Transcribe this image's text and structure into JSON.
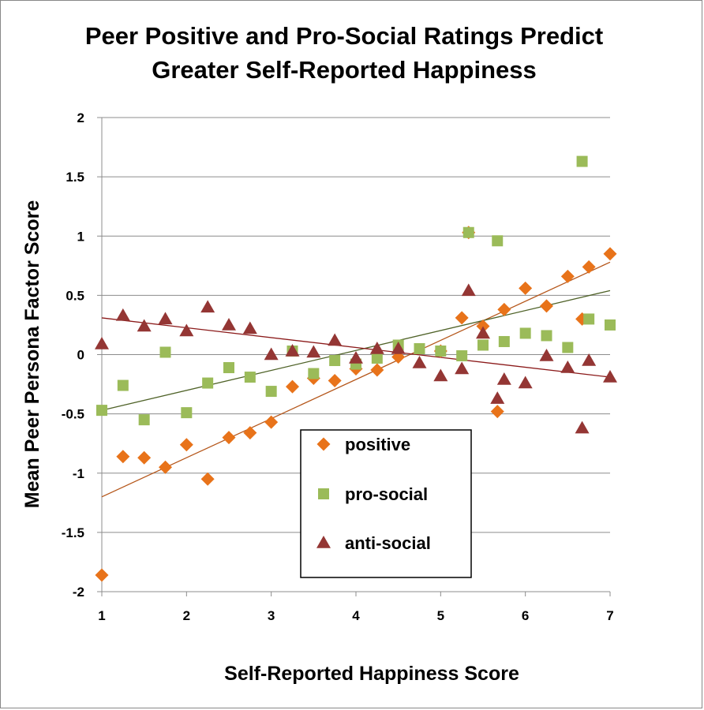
{
  "chart_data": {
    "type": "scatter",
    "title_lines": [
      "Peer Positive and Pro-Social Ratings Predict",
      "Greater Self-Reported Happiness"
    ],
    "xlabel": "Self-Reported Happiness Score",
    "ylabel": "Mean Peer Persona Factor Score",
    "xlim": [
      1,
      7
    ],
    "ylim": [
      -2,
      2
    ],
    "x_ticks": [
      "1",
      "2",
      "3",
      "4",
      "5",
      "6",
      "7"
    ],
    "y_ticks": [
      "2",
      "1.5",
      "1",
      "0.5",
      "0",
      "-0.5",
      "-1",
      "-1.5",
      "-2"
    ],
    "grid": "horizontal",
    "legend_position": "bottom-center",
    "series": [
      {
        "name": "positive",
        "marker": "diamond",
        "color": "#E8731A",
        "trend_color": "#B5561A",
        "trend_line": [
          [
            1,
            -1.2
          ],
          [
            7,
            0.78
          ]
        ],
        "points": [
          [
            1,
            -1.86
          ],
          [
            1.25,
            -0.86
          ],
          [
            1.5,
            -0.87
          ],
          [
            1.75,
            -0.95
          ],
          [
            2,
            -0.76
          ],
          [
            2.25,
            -1.05
          ],
          [
            2.5,
            -0.7
          ],
          [
            2.75,
            -0.66
          ],
          [
            3,
            -0.57
          ],
          [
            3.25,
            -0.27
          ],
          [
            3.5,
            -0.2
          ],
          [
            3.75,
            -0.22
          ],
          [
            4,
            -0.12
          ],
          [
            4.25,
            -0.13
          ],
          [
            4.5,
            -0.02
          ],
          [
            5,
            0.03
          ],
          [
            5.25,
            0.31
          ],
          [
            5.33,
            1.03
          ],
          [
            5.5,
            0.24
          ],
          [
            5.67,
            -0.48
          ],
          [
            5.75,
            0.38
          ],
          [
            6,
            0.56
          ],
          [
            6.25,
            0.41
          ],
          [
            6.5,
            0.66
          ],
          [
            6.67,
            0.3
          ],
          [
            6.75,
            0.74
          ],
          [
            7,
            0.85
          ]
        ]
      },
      {
        "name": "pro-social",
        "marker": "square",
        "color": "#9BBB59",
        "trend_color": "#4F6228",
        "trend_line": [
          [
            1,
            -0.47
          ],
          [
            7,
            0.54
          ]
        ],
        "points": [
          [
            1,
            -0.47
          ],
          [
            1.25,
            -0.26
          ],
          [
            1.5,
            -0.55
          ],
          [
            1.75,
            0.02
          ],
          [
            2,
            -0.49
          ],
          [
            2.25,
            -0.24
          ],
          [
            2.5,
            -0.11
          ],
          [
            2.75,
            -0.19
          ],
          [
            3,
            -0.31
          ],
          [
            3.25,
            0.03
          ],
          [
            3.5,
            -0.16
          ],
          [
            3.75,
            -0.05
          ],
          [
            4,
            -0.08
          ],
          [
            4.25,
            -0.03
          ],
          [
            4.5,
            0.08
          ],
          [
            4.75,
            0.05
          ],
          [
            5,
            0.03
          ],
          [
            5.25,
            -0.01
          ],
          [
            5.33,
            1.03
          ],
          [
            5.5,
            0.08
          ],
          [
            5.67,
            0.96
          ],
          [
            5.75,
            0.11
          ],
          [
            6,
            0.18
          ],
          [
            6.25,
            0.16
          ],
          [
            6.5,
            0.06
          ],
          [
            6.67,
            1.63
          ],
          [
            6.75,
            0.3
          ],
          [
            7,
            0.25
          ]
        ]
      },
      {
        "name": "anti-social",
        "marker": "triangle",
        "color": "#943634",
        "trend_color": "#8B1A1A",
        "trend_line": [
          [
            1,
            0.31
          ],
          [
            7,
            -0.19
          ]
        ],
        "points": [
          [
            1,
            0.09
          ],
          [
            1.25,
            0.33
          ],
          [
            1.5,
            0.24
          ],
          [
            1.75,
            0.3
          ],
          [
            2,
            0.2
          ],
          [
            2.25,
            0.4
          ],
          [
            2.5,
            0.25
          ],
          [
            2.75,
            0.22
          ],
          [
            3,
            0
          ],
          [
            3.25,
            0.03
          ],
          [
            3.5,
            0.02
          ],
          [
            3.75,
            0.12
          ],
          [
            4,
            -0.03
          ],
          [
            4.25,
            0.05
          ],
          [
            4.5,
            0.05
          ],
          [
            4.75,
            -0.07
          ],
          [
            5,
            -0.18
          ],
          [
            5.25,
            -0.12
          ],
          [
            5.33,
            0.54
          ],
          [
            5.5,
            0.18
          ],
          [
            5.67,
            -0.37
          ],
          [
            5.75,
            -0.21
          ],
          [
            6,
            -0.24
          ],
          [
            6.25,
            -0.01
          ],
          [
            6.5,
            -0.11
          ],
          [
            6.67,
            -0.62
          ],
          [
            6.75,
            -0.05
          ],
          [
            7,
            -0.19
          ]
        ]
      }
    ]
  }
}
